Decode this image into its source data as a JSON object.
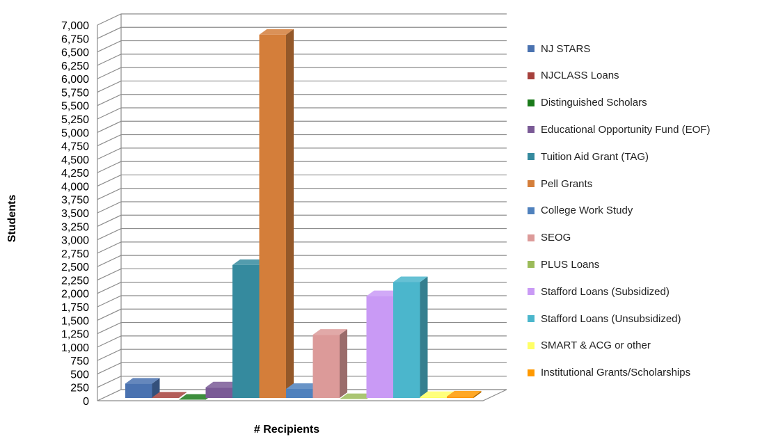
{
  "chart_data": {
    "type": "bar",
    "title": "",
    "xlabel": "# Recipients",
    "ylabel": "Students",
    "ylim": [
      0,
      7000
    ],
    "y_tick_step": 250,
    "y_ticks": [
      "0",
      "250",
      "500",
      "750",
      "1,000",
      "1,250",
      "1,500",
      "1,750",
      "2,000",
      "2,250",
      "2,500",
      "2,750",
      "3,000",
      "3,250",
      "3,500",
      "3,750",
      "4,000",
      "4,250",
      "4,500",
      "4,750",
      "5,000",
      "5,250",
      "5,500",
      "5,750",
      "6,000",
      "6,250",
      "6,500",
      "6,750",
      "7,000"
    ],
    "grid": true,
    "legend_position": "right",
    "style": "3d-column",
    "categories": [
      "# Recipients"
    ],
    "series": [
      {
        "name": "NJ STARS",
        "values": [
          320
        ],
        "color": "#4A72B0"
      },
      {
        "name": "NJCLASS Loans",
        "values": [
          60
        ],
        "color": "#A6403C"
      },
      {
        "name": "Distinguished Scholars",
        "values": [
          20
        ],
        "color": "#1A7A1A"
      },
      {
        "name": "Educational Opportunity Fund (EOF)",
        "values": [
          250
        ],
        "color": "#7A5A96"
      },
      {
        "name": "Tuition Aid Grant (TAG)",
        "values": [
          2530
        ],
        "color": "#358A9E"
      },
      {
        "name": "Pell Grants",
        "values": [
          6820
        ],
        "color": "#D47E3A"
      },
      {
        "name": "College Work Study",
        "values": [
          220
        ],
        "color": "#4F81BD"
      },
      {
        "name": "SEOG",
        "values": [
          1230
        ],
        "color": "#DC9A99"
      },
      {
        "name": "PLUS Loans",
        "values": [
          30
        ],
        "color": "#9BBB59"
      },
      {
        "name": "Stafford Loans (Subsidized)",
        "values": [
          1950
        ],
        "color": "#C99AF5"
      },
      {
        "name": "Stafford Loans (Unsubsidized)",
        "values": [
          2210
        ],
        "color": "#4BB6CC"
      },
      {
        "name": "SMART & ACG or other",
        "values": [
          70
        ],
        "color": "#FFFF66"
      },
      {
        "name": "Institutional Grants/Scholarships",
        "values": [
          80
        ],
        "color": "#FF9900"
      }
    ]
  }
}
